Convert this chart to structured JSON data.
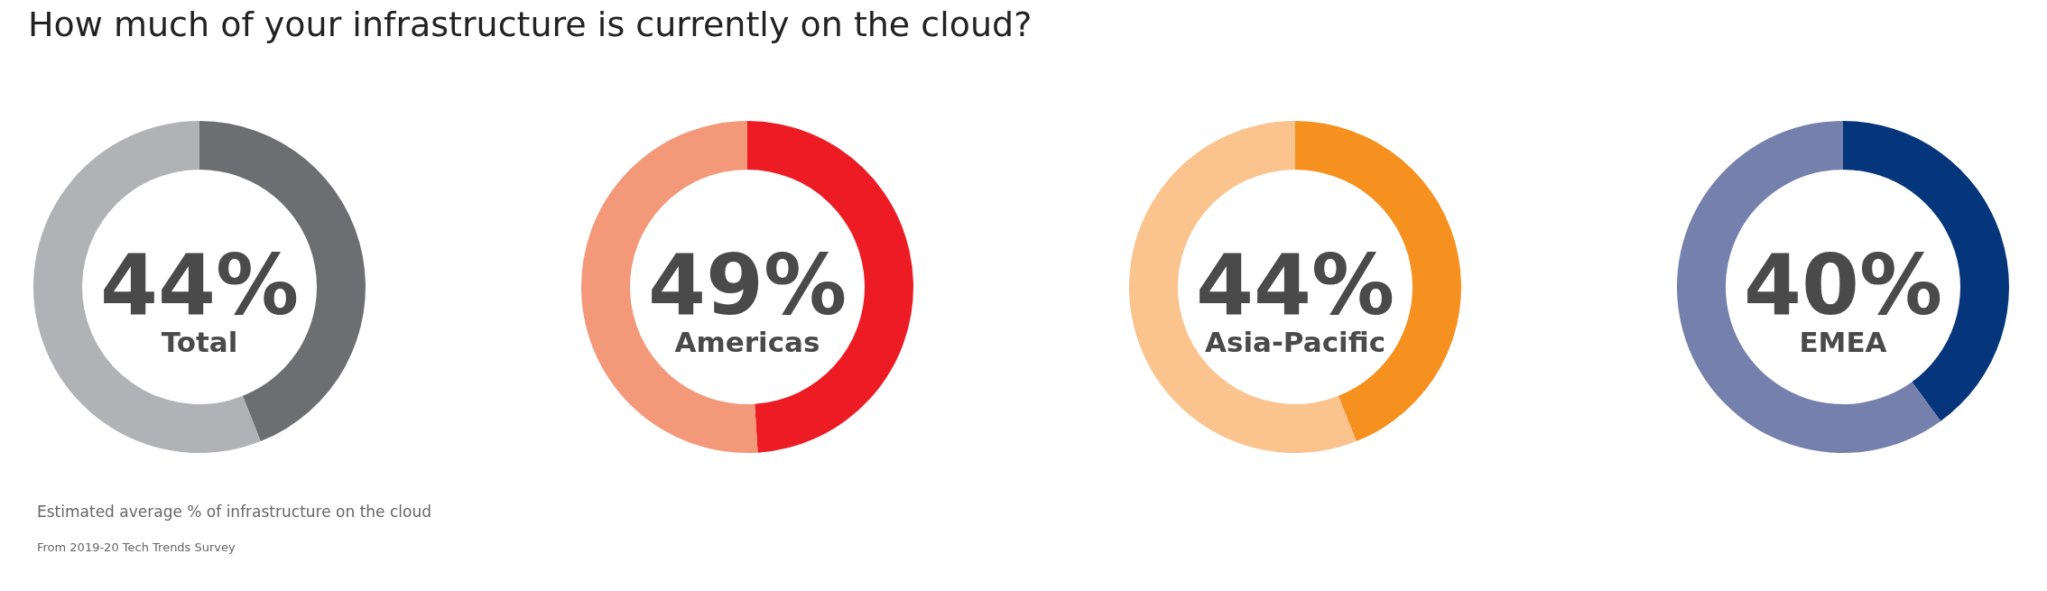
{
  "chart_data": [
    {
      "type": "donut",
      "title": "How much of your infrastructure is currently on the cloud?",
      "annotations": [
        "Estimated average % of infrastructure on the cloud",
        "From 2019-20 Tech Trends Survey"
      ],
      "categories": [
        "Total",
        null
      ],
      "values": [
        44,
        56
      ],
      "colors": [
        "#6d6e72",
        "#b1b2b6"
      ],
      "value_labels": [
        "44%",
        null
      ]
    },
    {
      "type": "donut",
      "categories": [
        "Americas",
        null
      ],
      "values": [
        49,
        51
      ],
      "colors": [
        "#ed1c24",
        "#f4987a"
      ],
      "value_labels": [
        "49%",
        null
      ]
    },
    {
      "type": "donut",
      "categories": [
        "Asia-Pacific",
        null
      ],
      "values": [
        44,
        56
      ],
      "colors": [
        "#f6901e",
        "#fbc38d"
      ],
      "value_labels": [
        "44%",
        null
      ]
    },
    {
      "type": "donut",
      "categories": [
        "EMEA",
        null
      ],
      "values": [
        40,
        60
      ],
      "colors": [
        "#05357a",
        "#7580ad"
      ],
      "value_labels": [
        "40%",
        null
      ]
    }
  ]
}
